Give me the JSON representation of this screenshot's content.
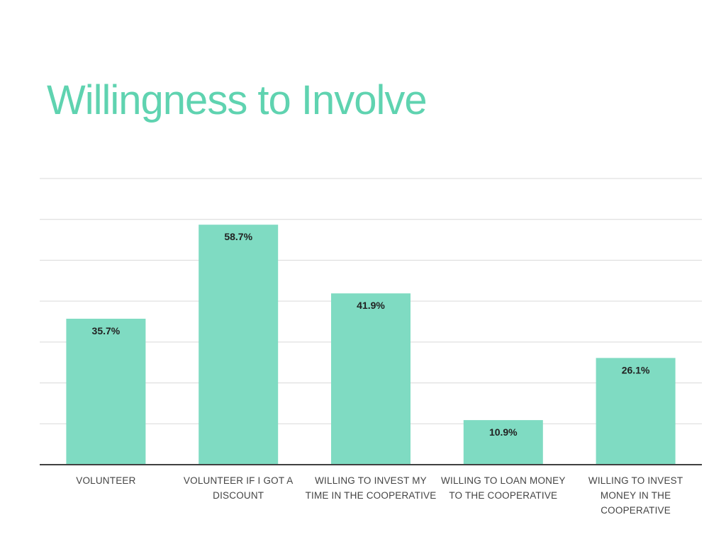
{
  "slide": {
    "title": "Willingness to Involve"
  },
  "colors": {
    "title": "#5fd3b0",
    "bar": "#7fdbc2",
    "gridline": "#d9d9d9",
    "axis": "#404040"
  },
  "chart_data": {
    "type": "bar",
    "title": "Willingness to Involve",
    "categories": [
      [
        "VOLUNTEER"
      ],
      [
        "VOLUNTEER IF I GOT A",
        "DISCOUNT"
      ],
      [
        "WILLING TO INVEST MY",
        "TIME IN THE COOPERATIVE"
      ],
      [
        "WILLING TO LOAN MONEY",
        "TO THE COOPERATIVE"
      ],
      [
        "WILLING TO INVEST",
        "MONEY IN THE",
        "COOPERATIVE"
      ]
    ],
    "values": [
      35.7,
      58.7,
      41.9,
      10.9,
      26.1
    ],
    "data_labels": [
      "35.7%",
      "58.7%",
      "41.9%",
      "10.9%",
      "26.1%"
    ],
    "ylim": [
      0,
      70
    ],
    "grid": true,
    "legend": "none",
    "xlabel": "",
    "ylabel": ""
  }
}
